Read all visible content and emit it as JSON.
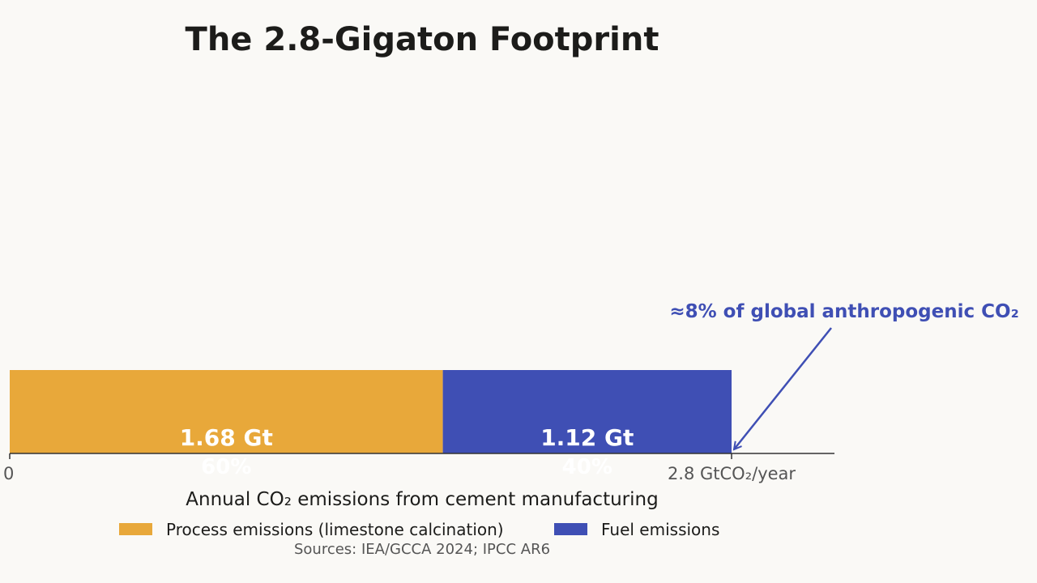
{
  "chart_data": {
    "type": "bar",
    "orientation": "horizontal",
    "stacked": true,
    "title": "The 2.8-Gigaton Footprint",
    "xlabel": "Annual CO₂ emissions from cement manufacturing",
    "xlim": [
      0,
      2.8
    ],
    "ticks": [
      {
        "value": 0,
        "label": "0"
      },
      {
        "value": 2.8,
        "label": "2.8 GtCO₂/year"
      }
    ],
    "series": [
      {
        "name": "Process emissions (limestone calcination)",
        "value": 1.68,
        "value_label": "1.68 Gt",
        "share_label": "60%",
        "color": "#e8a83a"
      },
      {
        "name": "Fuel emissions",
        "value": 1.12,
        "value_label": "1.12 Gt",
        "share_label": "40%",
        "color": "#3f4fb4"
      }
    ],
    "annotation": {
      "text": "≈8% of global anthropogenic CO₂",
      "at_value": 2.8,
      "color": "#3f4fb4"
    },
    "source": "Sources: IEA/GCCA 2024; IPCC AR6",
    "legend_position": "bottom",
    "grid": false
  }
}
